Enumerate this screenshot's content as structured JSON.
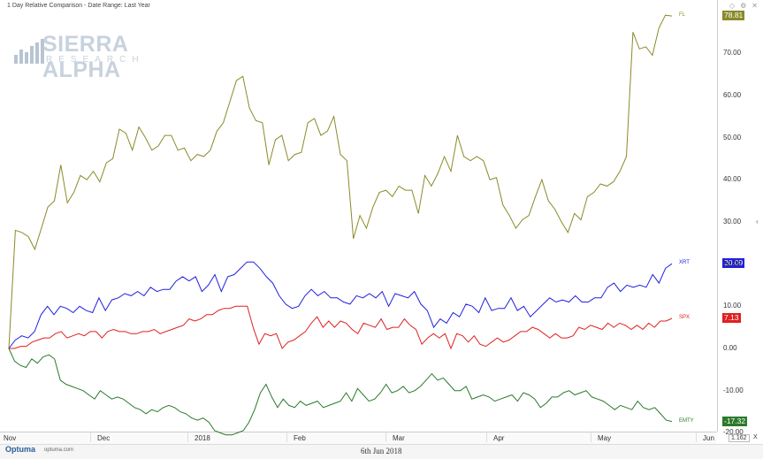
{
  "header": {
    "title": "1 Day Relative Comparison - Date Range: Last Year"
  },
  "toolbar": {
    "icons": [
      "diamond-icon",
      "settings-icon",
      "close-icon"
    ],
    "glyphs": [
      "◇",
      "⚙",
      "✕"
    ]
  },
  "logo": {
    "name": "SIERRA ALPHA",
    "sub": "RESEARCH"
  },
  "footer": {
    "brand": "Optuma",
    "url": "optuma.com",
    "date": "6th Jun 2018",
    "scale": "1.162",
    "scale_mark": "X"
  },
  "colors": {
    "FL": "#8a8a2a",
    "XRT": "#2020e0",
    "SPX": "#e02020",
    "EMTY": "#2a7a2a"
  },
  "chart_data": {
    "type": "line",
    "title": "1 Day Relative Comparison - Date Range: Last Year",
    "xlabel": "",
    "ylabel": "",
    "ylim": [
      -20,
      80
    ],
    "yticks": [
      "70.00",
      "60.00",
      "50.00",
      "40.00",
      "30.00",
      "20.00",
      "10.00",
      "0.00",
      "-10.00",
      "-20.00"
    ],
    "xticks": [
      "Nov",
      "Dec",
      "2018",
      "Feb",
      "Mar",
      "Apr",
      "May",
      "Jun"
    ],
    "grid": false,
    "legend": "right-side line labels",
    "series": [
      {
        "name": "FL",
        "last": "78.81",
        "values": [
          0,
          28,
          27.5,
          26.5,
          23.5,
          28.5,
          33.5,
          35,
          43.5,
          34.5,
          37,
          41,
          40,
          42,
          39.5,
          44,
          45,
          52,
          51,
          47,
          52.5,
          50,
          47,
          48,
          50.5,
          50.5,
          47,
          47.5,
          44.5,
          46,
          45.5,
          47,
          51.5,
          53.5,
          58.5,
          63.5,
          64.5,
          57,
          54,
          53.5,
          43.5,
          49.5,
          50.5,
          44.5,
          46,
          46.5,
          53.5,
          54.5,
          50.5,
          51.5,
          55,
          46,
          44.5,
          26,
          31.5,
          28.5,
          33.5,
          37,
          37.5,
          36,
          38.5,
          37.5,
          37.5,
          32,
          41,
          38.5,
          41.5,
          45.5,
          42,
          50.5,
          45.5,
          44.5,
          45.5,
          44.5,
          40,
          40.5,
          34,
          31.5,
          28.5,
          30.5,
          31.5,
          36,
          40,
          35,
          33,
          30,
          27.5,
          32,
          30.5,
          36,
          37,
          39,
          38.5,
          39.5,
          42,
          45.5,
          75,
          71,
          71.5,
          69.5,
          76,
          79,
          78.81
        ]
      },
      {
        "name": "XRT",
        "last": "20.09",
        "values": [
          0,
          2,
          3,
          2.5,
          4,
          8,
          10,
          8,
          10,
          9.5,
          8.5,
          10,
          9,
          8.5,
          12,
          9,
          11.5,
          12,
          13,
          12.5,
          13.5,
          12.5,
          14.5,
          13.5,
          14,
          14,
          16,
          17,
          16,
          17,
          13.5,
          15,
          17.5,
          13.5,
          17,
          17.5,
          19,
          20.5,
          20.5,
          19,
          17,
          15.5,
          12.5,
          10.5,
          9.5,
          10,
          12.5,
          14,
          12.5,
          13.5,
          12,
          12,
          11,
          10.5,
          12.5,
          12,
          13,
          12,
          13.5,
          10,
          13,
          12.5,
          12,
          13.5,
          10.5,
          9,
          5,
          7,
          6,
          8.5,
          7.5,
          10.5,
          10,
          8.5,
          12,
          9,
          9.5,
          9.5,
          12,
          9,
          10,
          7.5,
          9,
          10.5,
          12,
          11,
          11.5,
          11,
          12.5,
          11,
          11,
          12,
          12,
          14.5,
          15.5,
          13.5,
          15,
          14.5,
          15,
          14.5,
          17.5,
          15.5,
          19,
          20.09
        ]
      },
      {
        "name": "SPX",
        "last": "7.13",
        "values": [
          0,
          0,
          0.5,
          0.5,
          1.5,
          2,
          2.5,
          2.5,
          3.5,
          4,
          2.5,
          3,
          3.5,
          3,
          4,
          4,
          2.5,
          4,
          4.5,
          4,
          4,
          3.5,
          3.5,
          4,
          4,
          4.5,
          3.5,
          4,
          4.5,
          5,
          5.5,
          7,
          6.5,
          7,
          8,
          8,
          9,
          9.5,
          9.5,
          10,
          10,
          10,
          5,
          1,
          3.5,
          3,
          3.5,
          0,
          1.5,
          2,
          3,
          4,
          6,
          7.5,
          5,
          6.5,
          5,
          6.5,
          6,
          4.5,
          3.5,
          6,
          5.5,
          5,
          7,
          4.5,
          5,
          5,
          7,
          5.5,
          4.5,
          1,
          2.5,
          3.5,
          2.5,
          3.5,
          0,
          3.5,
          3,
          1.5,
          3,
          1,
          0.5,
          1.5,
          2.5,
          1.5,
          2,
          3,
          4,
          4,
          5,
          4.5,
          3.5,
          2.5,
          3.5,
          2.5,
          2.5,
          3,
          5,
          4.5,
          5.5,
          5,
          4.5,
          6,
          5,
          6,
          5.5,
          4.5,
          5.5,
          4.5,
          6,
          5,
          6.5,
          6.5,
          7.13
        ]
      },
      {
        "name": "EMTY",
        "last": "-17.32",
        "values": [
          0,
          -3,
          -4,
          -4.5,
          -2.5,
          -3.5,
          -2,
          -1.5,
          -2.5,
          -7.5,
          -8.5,
          -9,
          -9.5,
          -10,
          -11,
          -12,
          -10,
          -11,
          -12,
          -11.5,
          -12,
          -13,
          -14,
          -14.5,
          -15.5,
          -14.5,
          -15,
          -14,
          -13.5,
          -14,
          -15,
          -15.5,
          -16.5,
          -17,
          -16.5,
          -17.5,
          -19.5,
          -20,
          -20.5,
          -20.5,
          -20,
          -19.5,
          -17.5,
          -14.5,
          -10.5,
          -8.5,
          -11.5,
          -14,
          -12,
          -13.5,
          -14,
          -12.5,
          -13.5,
          -13,
          -12.5,
          -14,
          -13.5,
          -13,
          -12.5,
          -10.5,
          -12.5,
          -9.5,
          -11,
          -12.5,
          -12,
          -10.5,
          -8.5,
          -10.5,
          -10,
          -9,
          -10.5,
          -10,
          -9,
          -7.5,
          -6,
          -7.5,
          -7,
          -8.5,
          -10,
          -10,
          -9,
          -12,
          -11.5,
          -11,
          -11.5,
          -12.5,
          -12,
          -11.5,
          -11,
          -12.5,
          -10.5,
          -11,
          -12,
          -14,
          -13,
          -11.5,
          -11.5,
          -10.5,
          -10,
          -11,
          -10.5,
          -10,
          -11.5,
          -12,
          -12.5,
          -13.5,
          -14.5,
          -13.5,
          -14,
          -14.5,
          -12.5,
          -14,
          -14.5,
          -14,
          -15.5,
          -17,
          -17.32
        ]
      }
    ]
  }
}
